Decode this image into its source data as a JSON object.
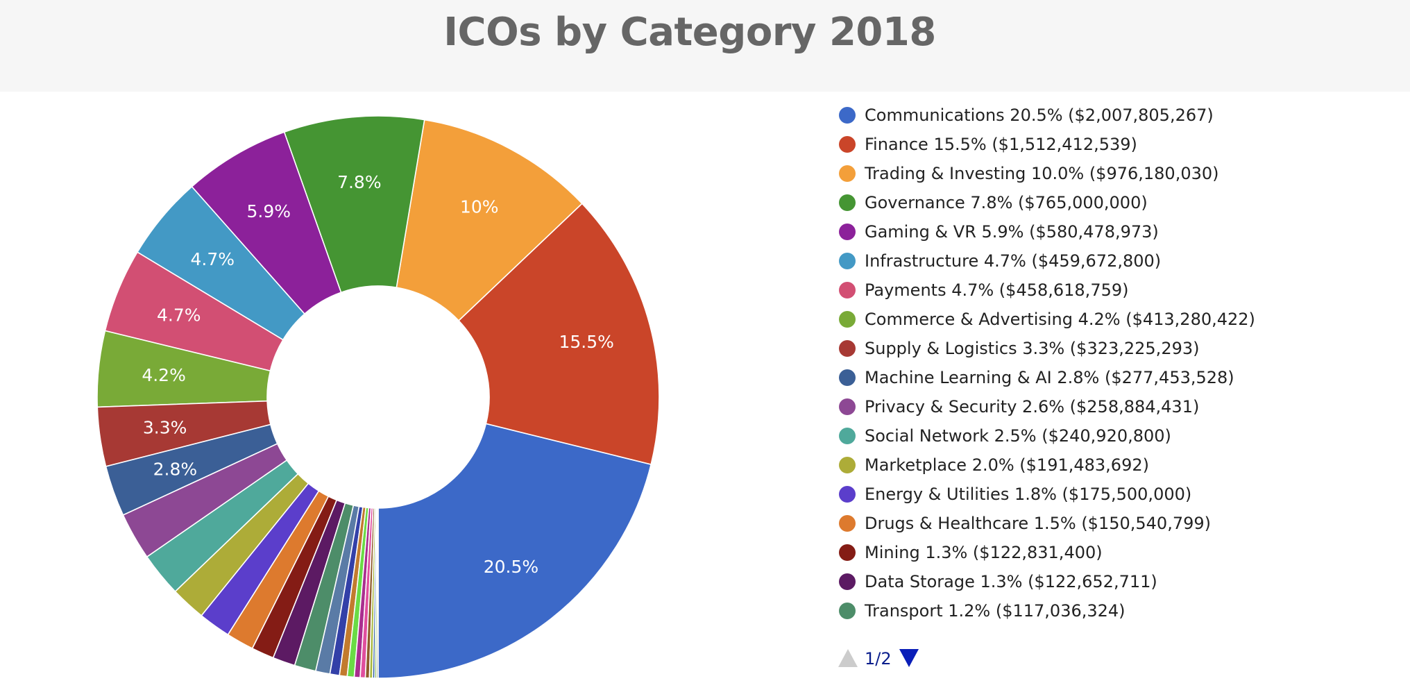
{
  "chart_data": {
    "type": "pie",
    "title": "ICOs by Category 2018",
    "series": [
      {
        "name": "Communications",
        "percent_label": "20.5%",
        "amount": "$2,007,805,267",
        "value": 2007805267,
        "color": "#3c69c8",
        "slice_label": "20.5%"
      },
      {
        "name": "Finance",
        "percent_label": "15.5%",
        "amount": "$1,512,412,539",
        "value": 1512412539,
        "color": "#ca4529",
        "slice_label": "15.5%"
      },
      {
        "name": "Trading & Investing",
        "percent_label": "10.0%",
        "amount": "$976,180,030",
        "value": 976180030,
        "color": "#f39f3a",
        "slice_label": "10%"
      },
      {
        "name": "Governance",
        "percent_label": "7.8%",
        "amount": "$765,000,000",
        "value": 765000000,
        "color": "#459533",
        "slice_label": "7.8%"
      },
      {
        "name": "Gaming & VR",
        "percent_label": "5.9%",
        "amount": "$580,478,973",
        "value": 580478973,
        "color": "#8c219a",
        "slice_label": "5.9%"
      },
      {
        "name": "Infrastructure",
        "percent_label": "4.7%",
        "amount": "$459,672,800",
        "value": 459672800,
        "color": "#4399c5",
        "slice_label": "4.7%"
      },
      {
        "name": "Payments",
        "percent_label": "4.7%",
        "amount": "$458,618,759",
        "value": 458618759,
        "color": "#d24f73",
        "slice_label": "4.7%"
      },
      {
        "name": "Commerce & Advertising",
        "percent_label": "4.2%",
        "amount": "$413,280,422",
        "value": 413280422,
        "color": "#79aa37",
        "slice_label": "4.2%"
      },
      {
        "name": "Supply & Logistics",
        "percent_label": "3.3%",
        "amount": "$323,225,293",
        "value": 323225293,
        "color": "#a73934",
        "slice_label": "3.3%"
      },
      {
        "name": "Machine Learning & AI",
        "percent_label": "2.8%",
        "amount": "$277,453,528",
        "value": 277453528,
        "color": "#3b5f96",
        "slice_label": "2.8%"
      },
      {
        "name": "Privacy & Security",
        "percent_label": "2.6%",
        "amount": "$258,884,431",
        "value": 258884431,
        "color": "#8d4894",
        "slice_label": ""
      },
      {
        "name": "Social Network",
        "percent_label": "2.5%",
        "amount": "$240,920,800",
        "value": 240920800,
        "color": "#4fa99b",
        "slice_label": ""
      },
      {
        "name": "Marketplace",
        "percent_label": "2.0%",
        "amount": "$191,483,692",
        "value": 191483692,
        "color": "#adac38",
        "slice_label": ""
      },
      {
        "name": "Energy & Utilities",
        "percent_label": "1.8%",
        "amount": "$175,500,000",
        "value": 175500000,
        "color": "#5b3ecb",
        "slice_label": ""
      },
      {
        "name": "Drugs & Healthcare",
        "percent_label": "1.5%",
        "amount": "$150,540,799",
        "value": 150540799,
        "color": "#dd7a2e",
        "slice_label": ""
      },
      {
        "name": "Mining",
        "percent_label": "1.3%",
        "amount": "$122,831,400",
        "value": 122831400,
        "color": "#841c15",
        "slice_label": ""
      },
      {
        "name": "Data Storage",
        "percent_label": "1.3%",
        "amount": "$122,652,711",
        "value": 122652711,
        "color": "#5c1a63",
        "slice_label": ""
      },
      {
        "name": "Transport",
        "percent_label": "1.2%",
        "amount": "$117,036,324",
        "value": 117036324,
        "color": "#4d8d69",
        "slice_label": ""
      }
    ],
    "unlisted_slices": [
      {
        "value": 78000000,
        "color": "#5a7ba6"
      },
      {
        "value": 52000000,
        "color": "#3340a8"
      },
      {
        "value": 42000000,
        "color": "#c27b2e"
      },
      {
        "value": 38000000,
        "color": "#6adb45"
      },
      {
        "value": 32000000,
        "color": "#a92e8f"
      },
      {
        "value": 28000000,
        "color": "#e04e9e"
      },
      {
        "value": 22000000,
        "color": "#8e5a2b"
      },
      {
        "value": 17000000,
        "color": "#a8b83c"
      },
      {
        "value": 12000000,
        "color": "#2e5fa0"
      },
      {
        "value": 10000000,
        "color": "#8bbf4d"
      },
      {
        "value": 8000000,
        "color": "#6d6d6d"
      }
    ],
    "legend_position": "right"
  },
  "legend": {
    "pager": {
      "text": "1/2"
    }
  }
}
